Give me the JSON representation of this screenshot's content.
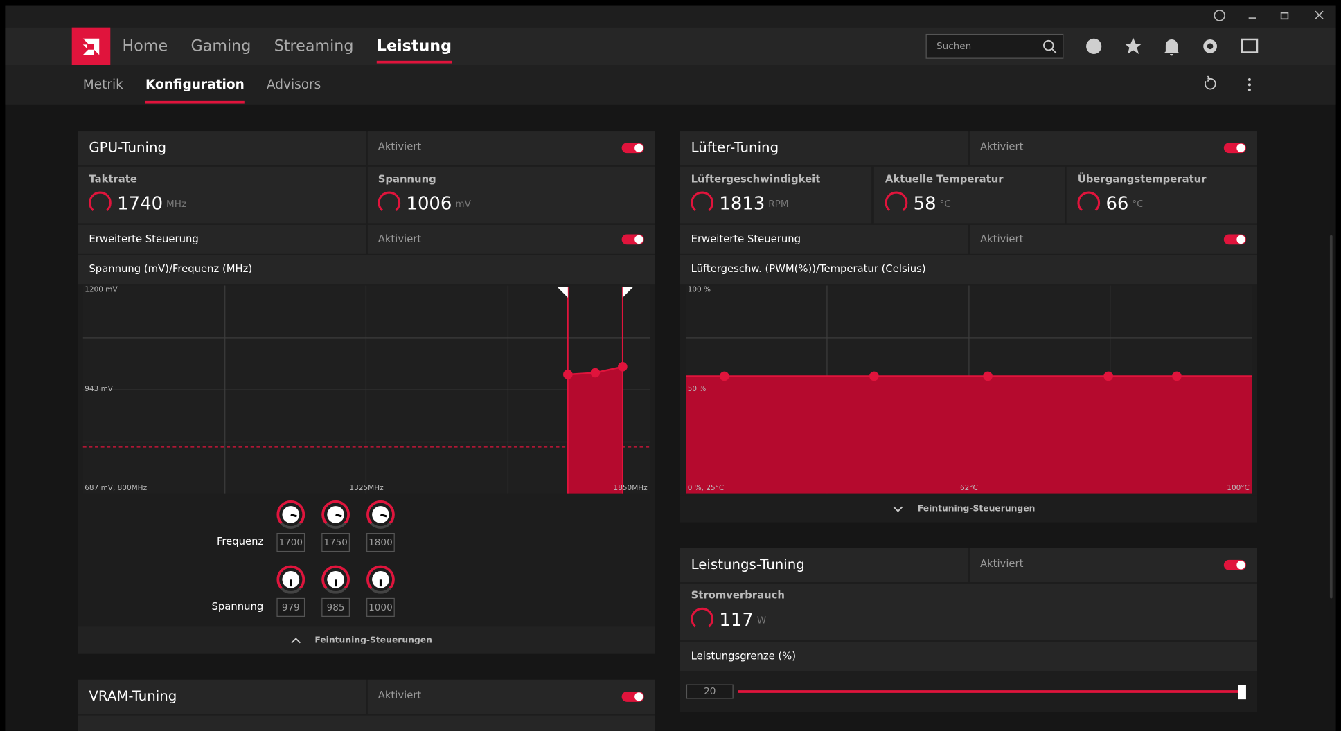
{
  "nav": {
    "tabs": [
      "Home",
      "Gaming",
      "Streaming",
      "Leistung"
    ],
    "active": 3,
    "search_placeholder": "Suchen"
  },
  "subnav": {
    "tabs": [
      "Metrik",
      "Konfiguration",
      "Advisors"
    ],
    "active": 1
  },
  "gpu_tuning": {
    "title": "GPU-Tuning",
    "status": "Aktiviert",
    "metrics": [
      {
        "label": "Taktrate",
        "value": 1740,
        "unit": "MHz"
      },
      {
        "label": "Spannung",
        "value": 1006,
        "unit": "mV"
      }
    ],
    "advanced": {
      "label": "Erweiterte Steuerung",
      "status": "Aktiviert"
    },
    "chart": {
      "title": "Spannung (mV)/Frequenz (MHz)",
      "y_top": "1200 mV",
      "y_mid": "943 mV",
      "origin": "687 mV, 800MHz",
      "x_mid": "1325MHz",
      "x_right": "1850MHz"
    },
    "frequency": {
      "label": "Frequenz",
      "values": [
        1700,
        1750,
        1800
      ]
    },
    "voltage": {
      "label": "Spannung",
      "values": [
        979,
        985,
        1000
      ]
    },
    "footer": "Feintuning-Steuerungen"
  },
  "fan_tuning": {
    "title": "Lüfter-Tuning",
    "status": "Aktiviert",
    "metrics": [
      {
        "label": "Lüftergeschwindigkeit",
        "value": 1813,
        "unit": "RPM"
      },
      {
        "label": "Aktuelle Temperatur",
        "value": 58,
        "unit": "°C"
      },
      {
        "label": "Übergangstemperatur",
        "value": 66,
        "unit": "°C"
      }
    ],
    "advanced": {
      "label": "Erweiterte Steuerung",
      "status": "Aktiviert"
    },
    "chart": {
      "title": "Lüftergeschw. (PWM(%))/Temperatur (Celsius)",
      "y_top": "100 %",
      "y_mid": "50 %",
      "origin": "0 %, 25°C",
      "x_mid": "62°C",
      "x_right": "100°C"
    },
    "footer": "Feintuning-Steuerungen"
  },
  "power_tuning": {
    "title": "Leistungs-Tuning",
    "status": "Aktiviert",
    "metric": {
      "label": "Stromverbrauch",
      "value": 117,
      "unit": "W"
    },
    "limit": {
      "label": "Leistungsgrenze (%)",
      "value": 20
    }
  },
  "vram_tuning": {
    "title": "VRAM-Tuning",
    "status": "Aktiviert"
  }
}
